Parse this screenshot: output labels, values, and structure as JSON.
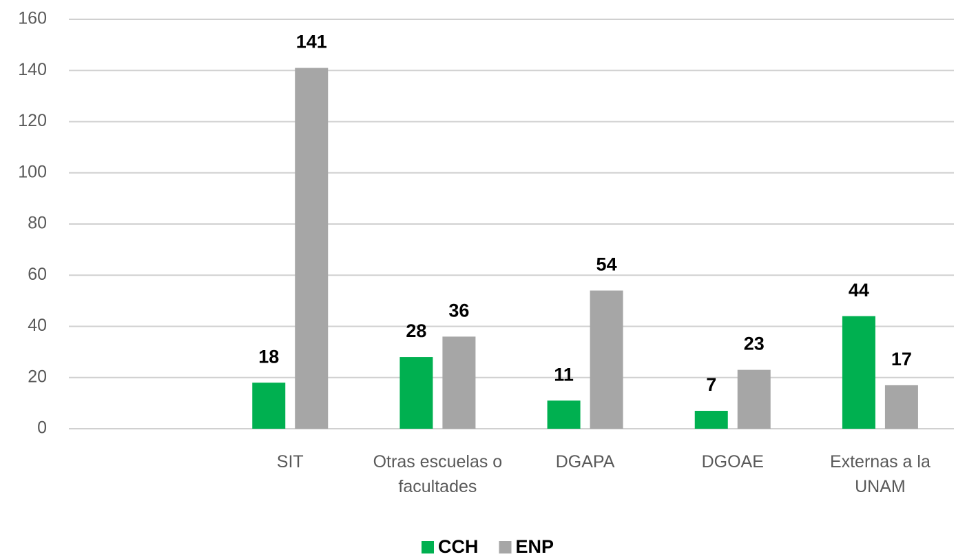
{
  "chart_data": {
    "type": "bar",
    "categories": [
      null,
      "SIT",
      "Otras escuelas o facultades",
      "DGAPA",
      "DGOAE",
      "Externas a la UNAM"
    ],
    "series": [
      {
        "name": "CCH",
        "color": "#00b050",
        "values": [
          null,
          18,
          28,
          11,
          7,
          44
        ]
      },
      {
        "name": "ENP",
        "color": "#a6a6a6",
        "values": [
          null,
          141,
          36,
          54,
          23,
          17
        ]
      }
    ],
    "ylim": [
      0,
      160
    ],
    "yticks": [
      0,
      20,
      40,
      60,
      80,
      100,
      120,
      140,
      160
    ],
    "grid": true,
    "legend": "bottom"
  }
}
